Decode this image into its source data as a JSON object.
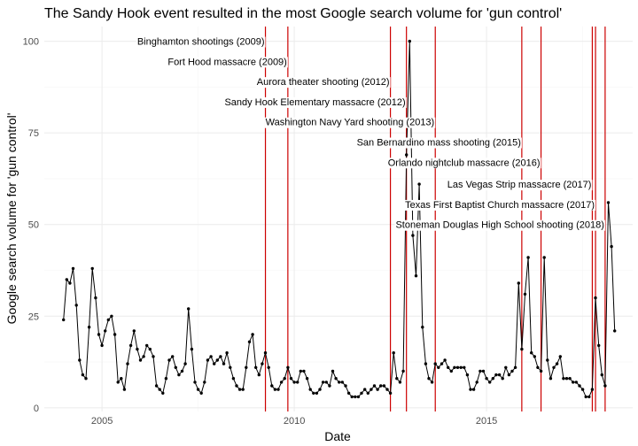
{
  "chart_data": {
    "type": "line",
    "title": "The Sandy Hook event resulted in the most Google search volume for 'gun control'",
    "xlabel": "Date",
    "ylabel": "Google search volume for 'gun control'",
    "xlim": [
      2003.5,
      2018.8
    ],
    "ylim": [
      -1,
      104
    ],
    "x_ticks": [
      2005,
      2010,
      2015
    ],
    "y_ticks": [
      0,
      25,
      50,
      75,
      100
    ],
    "grid": true,
    "line_color": "#000000",
    "event_line_color": "#cc0000",
    "series": [
      {
        "values": [
          [
            "2004-01",
            24
          ],
          [
            "2004-02",
            35
          ],
          [
            "2004-03",
            34
          ],
          [
            "2004-04",
            38
          ],
          [
            "2004-05",
            28
          ],
          [
            "2004-06",
            13
          ],
          [
            "2004-07",
            9
          ],
          [
            "2004-08",
            8
          ],
          [
            "2004-09",
            22
          ],
          [
            "2004-10",
            38
          ],
          [
            "2004-11",
            30
          ],
          [
            "2004-12",
            20
          ],
          [
            "2005-01",
            17
          ],
          [
            "2005-02",
            21
          ],
          [
            "2005-03",
            24
          ],
          [
            "2005-04",
            25
          ],
          [
            "2005-05",
            20
          ],
          [
            "2005-06",
            7
          ],
          [
            "2005-07",
            8
          ],
          [
            "2005-08",
            5
          ],
          [
            "2005-09",
            12
          ],
          [
            "2005-10",
            17
          ],
          [
            "2005-11",
            21
          ],
          [
            "2005-12",
            16
          ],
          [
            "2006-01",
            13
          ],
          [
            "2006-02",
            14
          ],
          [
            "2006-03",
            17
          ],
          [
            "2006-04",
            16
          ],
          [
            "2006-05",
            14
          ],
          [
            "2006-06",
            6
          ],
          [
            "2006-07",
            5
          ],
          [
            "2006-08",
            4
          ],
          [
            "2006-09",
            8
          ],
          [
            "2006-10",
            13
          ],
          [
            "2006-11",
            14
          ],
          [
            "2006-12",
            11
          ],
          [
            "2007-01",
            9
          ],
          [
            "2007-02",
            10
          ],
          [
            "2007-03",
            12
          ],
          [
            "2007-04",
            27
          ],
          [
            "2007-05",
            16
          ],
          [
            "2007-06",
            7
          ],
          [
            "2007-07",
            5
          ],
          [
            "2007-08",
            4
          ],
          [
            "2007-09",
            7
          ],
          [
            "2007-10",
            13
          ],
          [
            "2007-11",
            14
          ],
          [
            "2007-12",
            12
          ],
          [
            "2008-01",
            13
          ],
          [
            "2008-02",
            14
          ],
          [
            "2008-03",
            12
          ],
          [
            "2008-04",
            15
          ],
          [
            "2008-05",
            11
          ],
          [
            "2008-06",
            8
          ],
          [
            "2008-07",
            6
          ],
          [
            "2008-08",
            5
          ],
          [
            "2008-09",
            5
          ],
          [
            "2008-10",
            11
          ],
          [
            "2008-11",
            18
          ],
          [
            "2008-12",
            20
          ],
          [
            "2009-01",
            11
          ],
          [
            "2009-02",
            9
          ],
          [
            "2009-03",
            12
          ],
          [
            "2009-04",
            15
          ],
          [
            "2009-05",
            11
          ],
          [
            "2009-06",
            6
          ],
          [
            "2009-07",
            5
          ],
          [
            "2009-08",
            5
          ],
          [
            "2009-09",
            7
          ],
          [
            "2009-10",
            8
          ],
          [
            "2009-11",
            11
          ],
          [
            "2009-12",
            8
          ],
          [
            "2010-01",
            7
          ],
          [
            "2010-02",
            7
          ],
          [
            "2010-03",
            10
          ],
          [
            "2010-04",
            10
          ],
          [
            "2010-05",
            8
          ],
          [
            "2010-06",
            5
          ],
          [
            "2010-07",
            4
          ],
          [
            "2010-08",
            4
          ],
          [
            "2010-09",
            5
          ],
          [
            "2010-10",
            7
          ],
          [
            "2010-11",
            7
          ],
          [
            "2010-12",
            6
          ],
          [
            "2011-01",
            10
          ],
          [
            "2011-02",
            8
          ],
          [
            "2011-03",
            7
          ],
          [
            "2011-04",
            7
          ],
          [
            "2011-05",
            6
          ],
          [
            "2011-06",
            4
          ],
          [
            "2011-07",
            3
          ],
          [
            "2011-08",
            3
          ],
          [
            "2011-09",
            3
          ],
          [
            "2011-10",
            4
          ],
          [
            "2011-11",
            5
          ],
          [
            "2011-12",
            4
          ],
          [
            "2012-01",
            5
          ],
          [
            "2012-02",
            6
          ],
          [
            "2012-03",
            5
          ],
          [
            "2012-04",
            6
          ],
          [
            "2012-05",
            6
          ],
          [
            "2012-06",
            5
          ],
          [
            "2012-07",
            4
          ],
          [
            "2012-08",
            15
          ],
          [
            "2012-09",
            8
          ],
          [
            "2012-10",
            7
          ],
          [
            "2012-11",
            10
          ],
          [
            "2012-12",
            69
          ],
          [
            "2013-01",
            100
          ],
          [
            "2013-02",
            47
          ],
          [
            "2013-03",
            36
          ],
          [
            "2013-04",
            61
          ],
          [
            "2013-05",
            22
          ],
          [
            "2013-06",
            12
          ],
          [
            "2013-07",
            8
          ],
          [
            "2013-08",
            7
          ],
          [
            "2013-09",
            12
          ],
          [
            "2013-10",
            11
          ],
          [
            "2013-11",
            12
          ],
          [
            "2013-12",
            13
          ],
          [
            "2014-01",
            11
          ],
          [
            "2014-02",
            10
          ],
          [
            "2014-03",
            11
          ],
          [
            "2014-04",
            11
          ],
          [
            "2014-05",
            11
          ],
          [
            "2014-06",
            11
          ],
          [
            "2014-07",
            9
          ],
          [
            "2014-08",
            5
          ],
          [
            "2014-09",
            5
          ],
          [
            "2014-10",
            7
          ],
          [
            "2014-11",
            10
          ],
          [
            "2014-12",
            10
          ],
          [
            "2015-01",
            8
          ],
          [
            "2015-02",
            7
          ],
          [
            "2015-03",
            8
          ],
          [
            "2015-04",
            9
          ],
          [
            "2015-05",
            9
          ],
          [
            "2015-06",
            8
          ],
          [
            "2015-07",
            11
          ],
          [
            "2015-08",
            9
          ],
          [
            "2015-09",
            10
          ],
          [
            "2015-10",
            11
          ],
          [
            "2015-11",
            34
          ],
          [
            "2015-12",
            16
          ],
          [
            "2016-01",
            31
          ],
          [
            "2016-02",
            41
          ],
          [
            "2016-03",
            15
          ],
          [
            "2016-04",
            14
          ],
          [
            "2016-05",
            11
          ],
          [
            "2016-06",
            10
          ],
          [
            "2016-07",
            41
          ],
          [
            "2016-08",
            13
          ],
          [
            "2016-09",
            8
          ],
          [
            "2016-10",
            11
          ],
          [
            "2016-11",
            12
          ],
          [
            "2016-12",
            14
          ],
          [
            "2017-01",
            8
          ],
          [
            "2017-02",
            8
          ],
          [
            "2017-03",
            8
          ],
          [
            "2017-04",
            7
          ],
          [
            "2017-05",
            7
          ],
          [
            "2017-06",
            6
          ],
          [
            "2017-07",
            5
          ],
          [
            "2017-08",
            3
          ],
          [
            "2017-09",
            3
          ],
          [
            "2017-10",
            5
          ],
          [
            "2017-11",
            30
          ],
          [
            "2017-12",
            17
          ],
          [
            "2018-01",
            9
          ],
          [
            "2018-02",
            6
          ],
          [
            "2018-03",
            56
          ],
          [
            "2018-04",
            44
          ],
          [
            "2018-05",
            21
          ]
        ]
      }
    ],
    "events": [
      {
        "date": "2009-04",
        "label": "Binghamton shootings (2009)",
        "label_y": 100
      },
      {
        "date": "2009-11",
        "label": "Fort Hood massacre (2009)",
        "label_y": 94.5
      },
      {
        "date": "2012-07",
        "label": "Aurora theater shooting (2012)",
        "label_y": 89
      },
      {
        "date": "2012-12",
        "label": "Sandy Hook Elementary massacre (2012)",
        "label_y": 83.5
      },
      {
        "date": "2013-09",
        "label": "Washington Navy Yard shooting (2013)",
        "label_y": 78
      },
      {
        "date": "2015-12",
        "label": "San Bernardino mass shooting (2015)",
        "label_y": 72.5
      },
      {
        "date": "2016-06",
        "label": "Orlando nightclub massacre (2016)",
        "label_y": 67
      },
      {
        "date": "2017-10",
        "label": "Las Vegas Strip massacre (2017)",
        "label_y": 61
      },
      {
        "date": "2017-11",
        "label": "Texas First Baptist Church massacre (2017)",
        "label_y": 55.5
      },
      {
        "date": "2018-02",
        "label": "Stoneman Douglas High School shooting (2018)",
        "label_y": 50
      }
    ]
  }
}
